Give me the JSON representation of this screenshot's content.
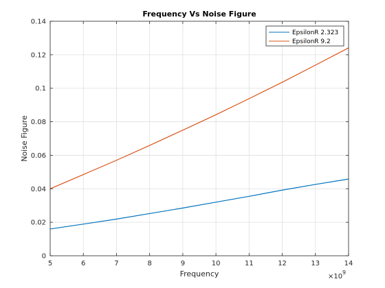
{
  "chart_data": {
    "type": "line",
    "title": "Frequency Vs Noise Figure",
    "xlabel": "Frequency",
    "ylabel": "Noise Figure",
    "x_exponent_base": "×10",
    "x_exponent_power": "9",
    "xlim": [
      5,
      14
    ],
    "ylim": [
      0,
      0.14
    ],
    "xticks": [
      5,
      6,
      7,
      8,
      9,
      10,
      11,
      12,
      13,
      14
    ],
    "yticks": [
      0,
      0.02,
      0.04,
      0.06,
      0.08,
      0.1,
      0.12,
      0.14
    ],
    "ytick_labels": [
      "0",
      "0.02",
      "0.04",
      "0.06",
      "0.08",
      "0.1",
      "0.12",
      "0.14"
    ],
    "grid": true,
    "legend_position": "top-right",
    "x": [
      5,
      6,
      7,
      8,
      9,
      10,
      11,
      12,
      13,
      14
    ],
    "series": [
      {
        "name": "EpsilonR 2.323",
        "color": "#0072bd",
        "values": [
          0.016,
          0.0189,
          0.0219,
          0.0252,
          0.0285,
          0.032,
          0.0355,
          0.0392,
          0.0426,
          0.0458
        ]
      },
      {
        "name": "EpsilonR 9.2",
        "color": "#d95319",
        "values": [
          0.04,
          0.0485,
          0.057,
          0.0659,
          0.075,
          0.0842,
          0.0938,
          0.1036,
          0.1138,
          0.1241
        ]
      }
    ]
  }
}
